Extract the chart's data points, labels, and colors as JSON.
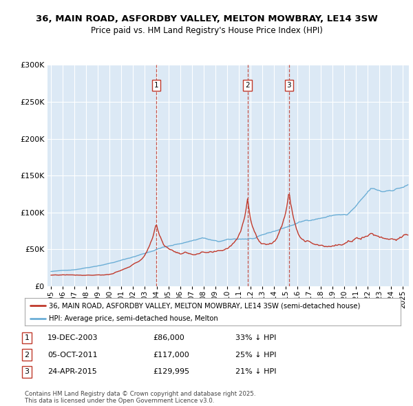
{
  "title1": "36, MAIN ROAD, ASFORDBY VALLEY, MELTON MOWBRAY, LE14 3SW",
  "title2": "Price paid vs. HM Land Registry's House Price Index (HPI)",
  "background_color": "#dce9f5",
  "legend_entry1": "36, MAIN ROAD, ASFORDBY VALLEY, MELTON MOWBRAY, LE14 3SW (semi-detached house)",
  "legend_entry2": "HPI: Average price, semi-detached house, Melton",
  "footer": "Contains HM Land Registry data © Crown copyright and database right 2025.\nThis data is licensed under the Open Government Licence v3.0.",
  "transactions": [
    {
      "num": 1,
      "date": "19-DEC-2003",
      "price": "£86,000",
      "pct": "33% ↓ HPI",
      "year": 2003.96
    },
    {
      "num": 2,
      "date": "05-OCT-2011",
      "price": "£117,000",
      "pct": "25% ↓ HPI",
      "year": 2011.75
    },
    {
      "num": 3,
      "date": "24-APR-2015",
      "price": "£129,995",
      "pct": "21% ↓ HPI",
      "year": 2015.29
    }
  ],
  "hpi_color": "#6baed6",
  "price_color": "#c0392b",
  "dashed_color": "#c0392b",
  "ylim": [
    0,
    300000
  ],
  "xlim_start": 1994.7,
  "xlim_end": 2025.5
}
